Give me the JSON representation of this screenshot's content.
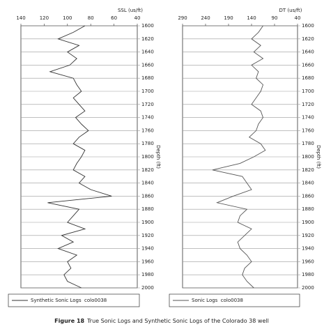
{
  "chart_data": [
    {
      "type": "line",
      "orientation": "vertical",
      "y_label": "SSL (us/ft)",
      "x_label": "Depth (ft)",
      "x": [
        1600,
        1610,
        1620,
        1630,
        1640,
        1650,
        1660,
        1670,
        1680,
        1690,
        1700,
        1710,
        1720,
        1730,
        1740,
        1750,
        1760,
        1770,
        1780,
        1790,
        1800,
        1810,
        1820,
        1830,
        1840,
        1850,
        1860,
        1870,
        1880,
        1890,
        1900,
        1910,
        1920,
        1930,
        1940,
        1950,
        1960,
        1970,
        1980,
        1990,
        2000
      ],
      "xlim": [
        1600,
        2000
      ],
      "xticks": [
        1600,
        1620,
        1640,
        1660,
        1680,
        1700,
        1720,
        1740,
        1760,
        1780,
        1800,
        1820,
        1840,
        1860,
        1880,
        1900,
        1920,
        1940,
        1960,
        1980,
        2000
      ],
      "ylim": [
        140,
        40
      ],
      "yticks": [
        140,
        120,
        100,
        80,
        60,
        40
      ],
      "grid": true,
      "series": [
        {
          "name": "Synthetic Sonic Logs  colo0038",
          "color": "#333333",
          "values": [
            85,
            95,
            108,
            90,
            100,
            92,
            98,
            115,
            95,
            92,
            88,
            95,
            90,
            85,
            93,
            88,
            82,
            90,
            95,
            85,
            88,
            92,
            95,
            85,
            90,
            80,
            62,
            117,
            90,
            95,
            100,
            85,
            105,
            95,
            108,
            92,
            100,
            97,
            103,
            100,
            88
          ]
        }
      ]
    },
    {
      "type": "line",
      "orientation": "vertical",
      "y_label": "DT (us/ft)",
      "x_label": "Depth (ft)",
      "x": [
        1600,
        1610,
        1620,
        1630,
        1640,
        1650,
        1660,
        1670,
        1680,
        1690,
        1700,
        1710,
        1720,
        1730,
        1740,
        1750,
        1760,
        1770,
        1780,
        1790,
        1800,
        1810,
        1820,
        1830,
        1840,
        1850,
        1860,
        1870,
        1880,
        1890,
        1900,
        1910,
        1920,
        1930,
        1940,
        1950,
        1960,
        1970,
        1980,
        1990,
        2000
      ],
      "xlim": [
        1600,
        2000
      ],
      "xticks": [
        1600,
        1620,
        1640,
        1660,
        1680,
        1700,
        1720,
        1740,
        1760,
        1780,
        1800,
        1820,
        1840,
        1860,
        1880,
        1900,
        1920,
        1940,
        1960,
        1980,
        2000
      ],
      "ylim": [
        290,
        40
      ],
      "yticks": [
        290,
        240,
        190,
        140,
        90,
        40
      ],
      "grid": true,
      "series": [
        {
          "name": "Sonic Logs  colo0038",
          "color": "#555555",
          "values": [
            115,
            125,
            140,
            120,
            135,
            115,
            140,
            125,
            130,
            115,
            120,
            130,
            140,
            120,
            115,
            125,
            130,
            145,
            120,
            110,
            135,
            165,
            225,
            160,
            150,
            140,
            180,
            215,
            150,
            165,
            170,
            140,
            155,
            170,
            165,
            150,
            140,
            155,
            160,
            150,
            135
          ]
        }
      ]
    }
  ],
  "figure_label": "Figure 18",
  "caption": "True Sonic Logs and Synthetic Sonic Logs of the Colorado 38 well"
}
